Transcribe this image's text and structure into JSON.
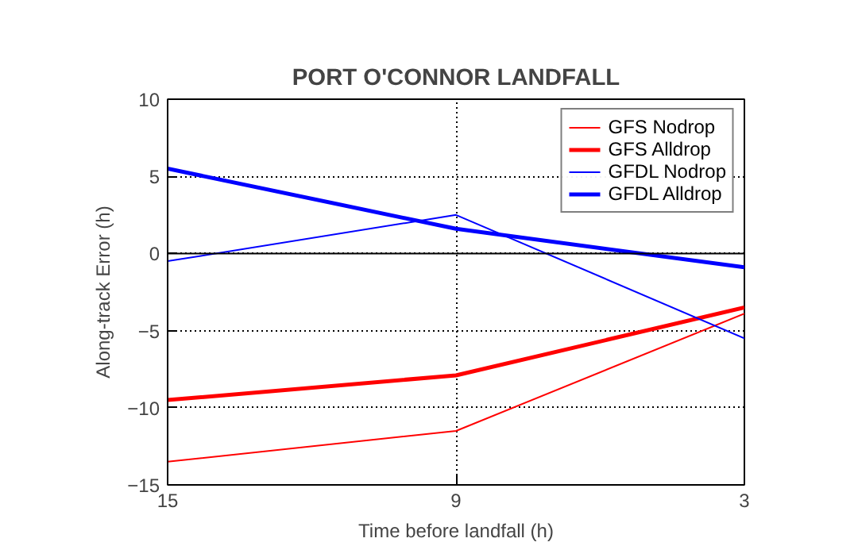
{
  "chart_data": {
    "type": "line",
    "title": "PORT O'CONNOR LANDFALL",
    "xlabel": "Time before landfall (h)",
    "ylabel": "Along-track Error (h)",
    "x": [
      15,
      9,
      3
    ],
    "xlim": [
      15,
      3
    ],
    "xticks": [
      15,
      9,
      3
    ],
    "ylim": [
      -15,
      10
    ],
    "yticks": [
      -15,
      -10,
      -5,
      0,
      5,
      10
    ],
    "series": [
      {
        "name": "GFS Nodrop",
        "color": "#ff0000",
        "values": [
          -13.5,
          -11.5,
          -3.9
        ]
      },
      {
        "name": "GFS Alldrop",
        "color": "#ff0000",
        "values": [
          -9.5,
          -7.9,
          -3.5
        ]
      },
      {
        "name": "GFDL Nodrop",
        "color": "#0000ff",
        "values": [
          -0.5,
          2.5,
          -5.5
        ]
      },
      {
        "name": "GFDL Alldrop",
        "color": "#0000ff",
        "values": [
          5.5,
          1.6,
          -0.9
        ]
      }
    ],
    "ref_lines": [
      {
        "axis": "y",
        "value": 0,
        "label": null,
        "color": "#000000",
        "line_style": "solid"
      }
    ],
    "grid": true,
    "legend": "top right",
    "line_style": "solid",
    "marker": "none"
  }
}
